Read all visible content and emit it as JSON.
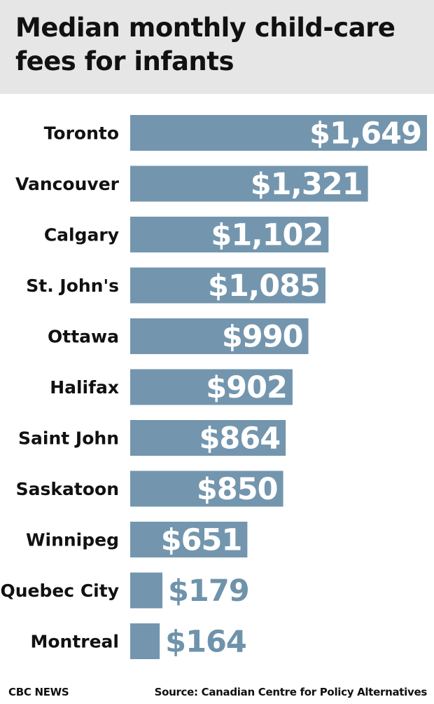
{
  "title": {
    "line1": "Median monthly child-care",
    "line2_prefix": "fees for ",
    "line2_bold": "infants"
  },
  "footer": {
    "left": "CBC NEWS",
    "right": "Source: Canadian Centre for Policy Alternatives"
  },
  "colors": {
    "bar": "#7396ae",
    "label_inside": "#ffffff",
    "label_outside": "#6f93ab",
    "header_bg": "#e6e6e6",
    "text": "#111111"
  },
  "chart_data": {
    "type": "bar",
    "orientation": "horizontal",
    "categories": [
      "Toronto",
      "Vancouver",
      "Calgary",
      "St. John's",
      "Ottawa",
      "Halifax",
      "Saint John",
      "Saskatoon",
      "Winnipeg",
      "Quebec City",
      "Montreal"
    ],
    "values": [
      1649,
      1321,
      1102,
      1085,
      990,
      902,
      864,
      850,
      651,
      179,
      164
    ],
    "value_labels": [
      "$1,649",
      "$1,321",
      "$1,102",
      "$1,085",
      "$990",
      "$902",
      "$864",
      "$850",
      "$651",
      "$179",
      "$164"
    ],
    "xlim": [
      0,
      1649
    ],
    "grid": false,
    "legend": "none"
  }
}
